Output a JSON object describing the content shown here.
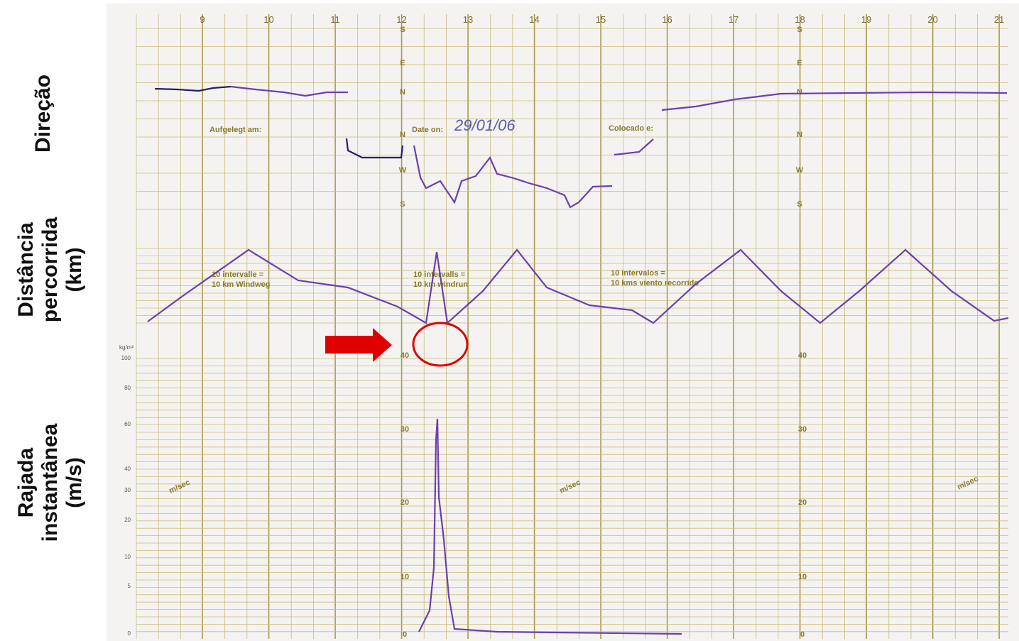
{
  "side_labels": [
    [
      "Direção"
    ],
    [
      "Distância",
      "percorrida",
      "(km)"
    ],
    [
      "Rajada",
      "instantânea",
      "(m/s)"
    ]
  ],
  "hours": [
    "9",
    "10",
    "11",
    "12",
    "13",
    "14",
    "15",
    "16",
    "17",
    "18",
    "19",
    "20",
    "21"
  ],
  "form_fields": [
    "Aufgelegt am:",
    "Date on:",
    "Colocado e:"
  ],
  "handwritten_date": "29/01/06",
  "interval_notes": [
    [
      "10 intervalle =",
      "10 km Windweg"
    ],
    [
      "10 intervalls =",
      "10 km windrun"
    ],
    [
      "10 intervalos =",
      "10 kms viento recorrido"
    ]
  ],
  "direction_letters": [
    "S",
    "E",
    "N",
    "N",
    "W",
    "S"
  ],
  "gust_scale": [
    "40",
    "30",
    "20",
    "10",
    "0"
  ],
  "unit_labels": [
    "m/sec",
    "m/sec",
    "m/sec"
  ],
  "left_scale": {
    "unit": "kg/m²",
    "values": [
      "100",
      "80",
      "60",
      "40",
      "30",
      "20",
      "10",
      "5",
      "0"
    ]
  }
}
